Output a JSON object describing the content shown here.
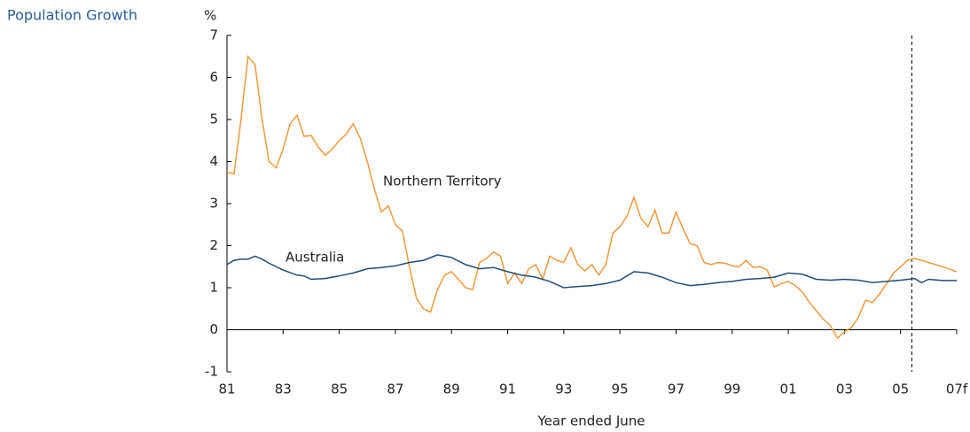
{
  "chart_data": {
    "type": "line",
    "title": "Population Growth",
    "y_unit": "%",
    "xlabel": "Year ended June",
    "xlim": [
      1981,
      2007
    ],
    "xticks": [
      {
        "value": 1981,
        "label": "81"
      },
      {
        "value": 1983,
        "label": "83"
      },
      {
        "value": 1985,
        "label": "85"
      },
      {
        "value": 1987,
        "label": "87"
      },
      {
        "value": 1989,
        "label": "89"
      },
      {
        "value": 1991,
        "label": "91"
      },
      {
        "value": 1993,
        "label": "93"
      },
      {
        "value": 1995,
        "label": "95"
      },
      {
        "value": 1997,
        "label": "97"
      },
      {
        "value": 1999,
        "label": "99"
      },
      {
        "value": 2001,
        "label": "01"
      },
      {
        "value": 2003,
        "label": "03"
      },
      {
        "value": 2005,
        "label": "05"
      },
      {
        "value": 2007,
        "label": "07f"
      }
    ],
    "ylim": [
      -1,
      7
    ],
    "yticks": [
      -1,
      0,
      1,
      2,
      3,
      4,
      5,
      6,
      7
    ],
    "forecast_line": 2005.4,
    "series": [
      {
        "name": "Northern Territory",
        "color": "#f39a3b",
        "x": [
          1981,
          1981.25,
          1981.5,
          1981.75,
          1982,
          1982.25,
          1982.5,
          1982.75,
          1983,
          1983.25,
          1983.5,
          1983.75,
          1984,
          1984.25,
          1984.5,
          1984.75,
          1985,
          1985.25,
          1985.5,
          1985.75,
          1986,
          1986.25,
          1986.5,
          1986.75,
          1987,
          1987.25,
          1987.5,
          1987.75,
          1988,
          1988.25,
          1988.5,
          1988.75,
          1989,
          1989.25,
          1989.5,
          1989.75,
          1990,
          1990.25,
          1990.5,
          1990.75,
          1991,
          1991.25,
          1991.5,
          1991.75,
          1992,
          1992.25,
          1992.5,
          1992.75,
          1993,
          1993.25,
          1993.5,
          1993.75,
          1994,
          1994.25,
          1994.5,
          1994.75,
          1995,
          1995.25,
          1995.5,
          1995.75,
          1996,
          1996.25,
          1996.5,
          1996.75,
          1997,
          1997.25,
          1997.5,
          1997.75,
          1998,
          1998.25,
          1998.5,
          1998.75,
          1999,
          1999.25,
          1999.5,
          1999.75,
          2000,
          2000.25,
          2000.5,
          2000.75,
          2001,
          2001.25,
          2001.5,
          2001.75,
          2002,
          2002.25,
          2002.5,
          2002.75,
          2003,
          2003.25,
          2003.5,
          2003.75,
          2004,
          2004.25,
          2004.5,
          2004.75,
          2005,
          2005.25,
          2005.5,
          2006,
          2006.5,
          2007
        ],
        "values": [
          3.75,
          3.7,
          5.0,
          6.5,
          6.3,
          5.0,
          4.0,
          3.85,
          4.3,
          4.9,
          5.1,
          4.6,
          4.62,
          4.35,
          4.15,
          4.3,
          4.5,
          4.65,
          4.9,
          4.55,
          4.0,
          3.35,
          2.8,
          2.95,
          2.5,
          2.35,
          1.5,
          0.75,
          0.5,
          0.42,
          0.95,
          1.3,
          1.38,
          1.2,
          1.0,
          0.95,
          1.6,
          1.7,
          1.85,
          1.75,
          1.1,
          1.35,
          1.1,
          1.45,
          1.55,
          1.2,
          1.75,
          1.65,
          1.6,
          1.95,
          1.55,
          1.4,
          1.55,
          1.3,
          1.55,
          2.3,
          2.45,
          2.7,
          3.15,
          2.65,
          2.45,
          2.85,
          2.3,
          2.3,
          2.8,
          2.4,
          2.05,
          2.0,
          1.6,
          1.55,
          1.6,
          1.58,
          1.52,
          1.5,
          1.65,
          1.48,
          1.5,
          1.42,
          1.02,
          1.1,
          1.15,
          1.05,
          0.9,
          0.65,
          0.45,
          0.25,
          0.1,
          -0.2,
          -0.05,
          0.05,
          0.3,
          0.7,
          0.65,
          0.85,
          1.1,
          1.35,
          1.5,
          1.65,
          1.7,
          1.6,
          1.5,
          1.38
        ]
      },
      {
        "name": "Australia",
        "color": "#1f4e79",
        "x": [
          1981,
          1981.25,
          1981.5,
          1981.75,
          1982,
          1982.25,
          1982.5,
          1983,
          1983.5,
          1983.75,
          1984,
          1984.5,
          1985,
          1985.5,
          1986,
          1986.5,
          1987,
          1987.5,
          1988,
          1988.5,
          1989,
          1989.5,
          1990,
          1990.5,
          1991,
          1991.5,
          1992,
          1992.5,
          1993,
          1993.5,
          1994,
          1994.5,
          1995,
          1995.5,
          1996,
          1996.5,
          1997,
          1997.5,
          1998,
          1998.5,
          1999,
          1999.5,
          2000,
          2000.5,
          2001,
          2001.5,
          2002,
          2002.5,
          2003,
          2003.5,
          2004,
          2004.5,
          2005,
          2005.5,
          2005.75,
          2006,
          2006.5,
          2007
        ],
        "values": [
          1.55,
          1.65,
          1.68,
          1.68,
          1.75,
          1.68,
          1.58,
          1.42,
          1.3,
          1.28,
          1.2,
          1.22,
          1.28,
          1.35,
          1.45,
          1.48,
          1.52,
          1.6,
          1.65,
          1.78,
          1.72,
          1.55,
          1.45,
          1.48,
          1.38,
          1.3,
          1.25,
          1.15,
          1.0,
          1.03,
          1.05,
          1.1,
          1.18,
          1.38,
          1.35,
          1.25,
          1.12,
          1.05,
          1.08,
          1.12,
          1.15,
          1.2,
          1.22,
          1.25,
          1.35,
          1.32,
          1.2,
          1.18,
          1.2,
          1.18,
          1.12,
          1.15,
          1.18,
          1.22,
          1.12,
          1.2,
          1.17,
          1.17
        ]
      }
    ]
  }
}
